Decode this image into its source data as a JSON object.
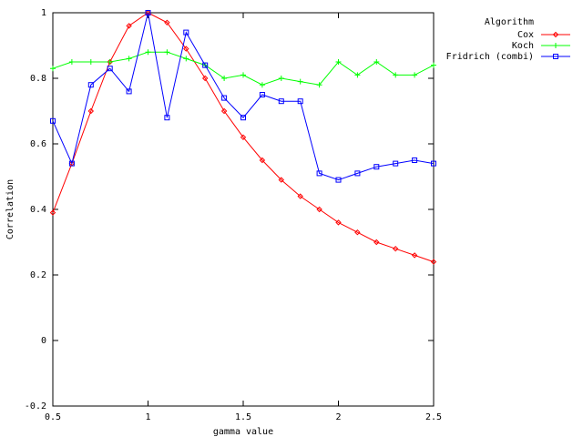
{
  "chart_data": {
    "type": "line",
    "title": "",
    "xlabel": "gamma value",
    "ylabel": "Correlation",
    "xlim": [
      0.5,
      2.5
    ],
    "ylim": [
      -0.2,
      1
    ],
    "xticks": [
      {
        "value": 0.5,
        "label": "0.5"
      },
      {
        "value": 1,
        "label": "1"
      },
      {
        "value": 1.5,
        "label": "1.5"
      },
      {
        "value": 2,
        "label": "2"
      },
      {
        "value": 2.5,
        "label": "2.5"
      }
    ],
    "yticks": [
      {
        "value": -0.2,
        "label": "-0.2"
      },
      {
        "value": 0,
        "label": "0"
      },
      {
        "value": 0.2,
        "label": "0.2"
      },
      {
        "value": 0.4,
        "label": "0.4"
      },
      {
        "value": 0.6,
        "label": "0.6"
      },
      {
        "value": 0.8,
        "label": "0.8"
      },
      {
        "value": 1,
        "label": "1"
      }
    ],
    "grid": false,
    "legend": {
      "title": "Algorithm",
      "placement": "top-right-outside"
    },
    "x": [
      0.5,
      0.6,
      0.7,
      0.8,
      0.9,
      1.0,
      1.1,
      1.2,
      1.3,
      1.4,
      1.5,
      1.6,
      1.7,
      1.8,
      1.9,
      2.0,
      2.1,
      2.2,
      2.3,
      2.4,
      2.5
    ],
    "series": [
      {
        "name": "Cox",
        "color": "#ff0000",
        "marker": "diamond",
        "values": [
          0.39,
          0.54,
          0.7,
          0.85,
          0.96,
          1.0,
          0.97,
          0.89,
          0.8,
          0.7,
          0.62,
          0.55,
          0.49,
          0.44,
          0.4,
          0.36,
          0.33,
          0.3,
          0.28,
          0.26,
          0.24
        ]
      },
      {
        "name": "Koch",
        "color": "#00ff00",
        "marker": "plus",
        "values": [
          0.83,
          0.85,
          0.85,
          0.85,
          0.86,
          0.88,
          0.88,
          0.86,
          0.84,
          0.8,
          0.81,
          0.78,
          0.8,
          0.79,
          0.78,
          0.85,
          0.81,
          0.85,
          0.81,
          0.81,
          0.84
        ]
      },
      {
        "name": "Fridrich (combi)",
        "color": "#0000ff",
        "marker": "square",
        "values": [
          0.67,
          0.54,
          0.78,
          0.83,
          0.76,
          1.0,
          0.68,
          0.94,
          0.84,
          0.74,
          0.68,
          0.75,
          0.73,
          0.73,
          0.51,
          0.49,
          0.51,
          0.53,
          0.54,
          0.55,
          0.54
        ]
      }
    ]
  }
}
